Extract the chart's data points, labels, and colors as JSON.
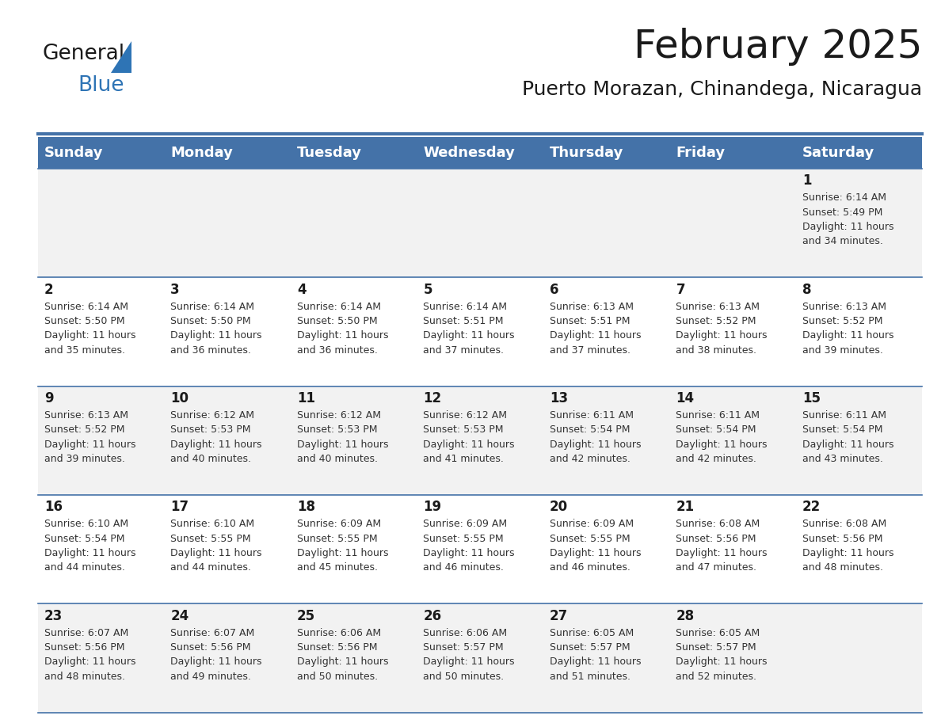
{
  "title": "February 2025",
  "subtitle": "Puerto Morazan, Chinandega, Nicaragua",
  "days_of_week": [
    "Sunday",
    "Monday",
    "Tuesday",
    "Wednesday",
    "Thursday",
    "Friday",
    "Saturday"
  ],
  "header_bg": "#4472a8",
  "header_text_color": "#ffffff",
  "row_bg_odd": "#f2f2f2",
  "row_bg_even": "#ffffff",
  "cell_text_color": "#333333",
  "day_num_color": "#1a1a1a",
  "separator_color": "#4472a8",
  "calendar_data": [
    [
      null,
      null,
      null,
      null,
      null,
      null,
      {
        "day": 1,
        "sunrise": "6:14 AM",
        "sunset": "5:49 PM",
        "daylight": "11 hours and 34 minutes."
      }
    ],
    [
      {
        "day": 2,
        "sunrise": "6:14 AM",
        "sunset": "5:50 PM",
        "daylight": "11 hours and 35 minutes."
      },
      {
        "day": 3,
        "sunrise": "6:14 AM",
        "sunset": "5:50 PM",
        "daylight": "11 hours and 36 minutes."
      },
      {
        "day": 4,
        "sunrise": "6:14 AM",
        "sunset": "5:50 PM",
        "daylight": "11 hours and 36 minutes."
      },
      {
        "day": 5,
        "sunrise": "6:14 AM",
        "sunset": "5:51 PM",
        "daylight": "11 hours and 37 minutes."
      },
      {
        "day": 6,
        "sunrise": "6:13 AM",
        "sunset": "5:51 PM",
        "daylight": "11 hours and 37 minutes."
      },
      {
        "day": 7,
        "sunrise": "6:13 AM",
        "sunset": "5:52 PM",
        "daylight": "11 hours and 38 minutes."
      },
      {
        "day": 8,
        "sunrise": "6:13 AM",
        "sunset": "5:52 PM",
        "daylight": "11 hours and 39 minutes."
      }
    ],
    [
      {
        "day": 9,
        "sunrise": "6:13 AM",
        "sunset": "5:52 PM",
        "daylight": "11 hours and 39 minutes."
      },
      {
        "day": 10,
        "sunrise": "6:12 AM",
        "sunset": "5:53 PM",
        "daylight": "11 hours and 40 minutes."
      },
      {
        "day": 11,
        "sunrise": "6:12 AM",
        "sunset": "5:53 PM",
        "daylight": "11 hours and 40 minutes."
      },
      {
        "day": 12,
        "sunrise": "6:12 AM",
        "sunset": "5:53 PM",
        "daylight": "11 hours and 41 minutes."
      },
      {
        "day": 13,
        "sunrise": "6:11 AM",
        "sunset": "5:54 PM",
        "daylight": "11 hours and 42 minutes."
      },
      {
        "day": 14,
        "sunrise": "6:11 AM",
        "sunset": "5:54 PM",
        "daylight": "11 hours and 42 minutes."
      },
      {
        "day": 15,
        "sunrise": "6:11 AM",
        "sunset": "5:54 PM",
        "daylight": "11 hours and 43 minutes."
      }
    ],
    [
      {
        "day": 16,
        "sunrise": "6:10 AM",
        "sunset": "5:54 PM",
        "daylight": "11 hours and 44 minutes."
      },
      {
        "day": 17,
        "sunrise": "6:10 AM",
        "sunset": "5:55 PM",
        "daylight": "11 hours and 44 minutes."
      },
      {
        "day": 18,
        "sunrise": "6:09 AM",
        "sunset": "5:55 PM",
        "daylight": "11 hours and 45 minutes."
      },
      {
        "day": 19,
        "sunrise": "6:09 AM",
        "sunset": "5:55 PM",
        "daylight": "11 hours and 46 minutes."
      },
      {
        "day": 20,
        "sunrise": "6:09 AM",
        "sunset": "5:55 PM",
        "daylight": "11 hours and 46 minutes."
      },
      {
        "day": 21,
        "sunrise": "6:08 AM",
        "sunset": "5:56 PM",
        "daylight": "11 hours and 47 minutes."
      },
      {
        "day": 22,
        "sunrise": "6:08 AM",
        "sunset": "5:56 PM",
        "daylight": "11 hours and 48 minutes."
      }
    ],
    [
      {
        "day": 23,
        "sunrise": "6:07 AM",
        "sunset": "5:56 PM",
        "daylight": "11 hours and 48 minutes."
      },
      {
        "day": 24,
        "sunrise": "6:07 AM",
        "sunset": "5:56 PM",
        "daylight": "11 hours and 49 minutes."
      },
      {
        "day": 25,
        "sunrise": "6:06 AM",
        "sunset": "5:56 PM",
        "daylight": "11 hours and 50 minutes."
      },
      {
        "day": 26,
        "sunrise": "6:06 AM",
        "sunset": "5:57 PM",
        "daylight": "11 hours and 50 minutes."
      },
      {
        "day": 27,
        "sunrise": "6:05 AM",
        "sunset": "5:57 PM",
        "daylight": "11 hours and 51 minutes."
      },
      {
        "day": 28,
        "sunrise": "6:05 AM",
        "sunset": "5:57 PM",
        "daylight": "11 hours and 52 minutes."
      },
      null
    ]
  ],
  "title_fontsize": 36,
  "subtitle_fontsize": 18,
  "header_fontsize": 13,
  "day_num_fontsize": 12,
  "cell_fontsize": 9
}
